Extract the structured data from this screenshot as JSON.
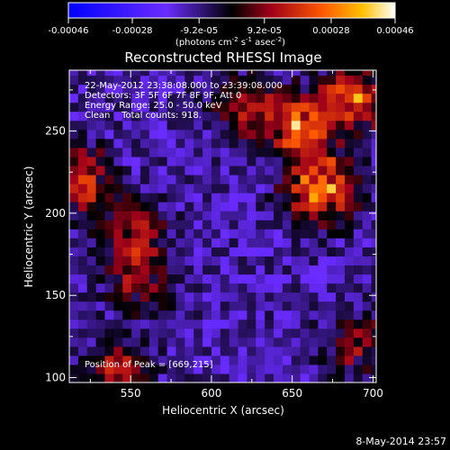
{
  "chart_data": {
    "type": "heatmap",
    "title": "Reconstructed RHESSI Image",
    "xlabel": "Heliocentric X (arcsec)",
    "ylabel": "Heliocentric Y (arcsec)",
    "xlim": [
      512,
      702
    ],
    "ylim": [
      97,
      287
    ],
    "xticks": [
      550,
      600,
      650,
      700
    ],
    "yticks": [
      100,
      150,
      200,
      250
    ],
    "colorbar": {
      "label": "(photons cm",
      "label_exp1": "-2",
      "label_mid": " s",
      "label_exp2": "-1",
      "label_mid2": " asec",
      "label_exp3": "-2",
      "label_end": ")",
      "ticks": [
        "-0.00046",
        "-0.00028",
        "-9.2e-05",
        "9.2e-05",
        "0.00028",
        "0.00046"
      ],
      "range": [
        -0.00046,
        0.00046
      ]
    },
    "annotations": [
      "22-May-2012 23:38:08.000 to 23:39:08.000",
      "Detectors: 3F 5F 6F 7F 8F 9F, Att 0",
      "Energy Range: 25.0 - 50.0 keV",
      "Clean    Total counts: 918."
    ],
    "peak_label": "Position of Peak = [669,215]",
    "peak": [
      669,
      215
    ],
    "bright_sources": [
      {
        "x": 668,
        "y": 215,
        "peak": 0.00046
      },
      {
        "x": 655,
        "y": 255,
        "peak": 0.0004
      },
      {
        "x": 690,
        "y": 270,
        "peak": 0.00042
      },
      {
        "x": 520,
        "y": 220,
        "peak": 0.0003
      },
      {
        "x": 552,
        "y": 185,
        "peak": 0.00028
      },
      {
        "x": 620,
        "y": 265,
        "peak": 0.00025
      },
      {
        "x": 555,
        "y": 155,
        "peak": 0.00018
      },
      {
        "x": 690,
        "y": 120,
        "peak": 0.00022
      },
      {
        "x": 540,
        "y": 102,
        "peak": 0.0003
      }
    ],
    "footer_date": "8-May-2014 23:57"
  }
}
